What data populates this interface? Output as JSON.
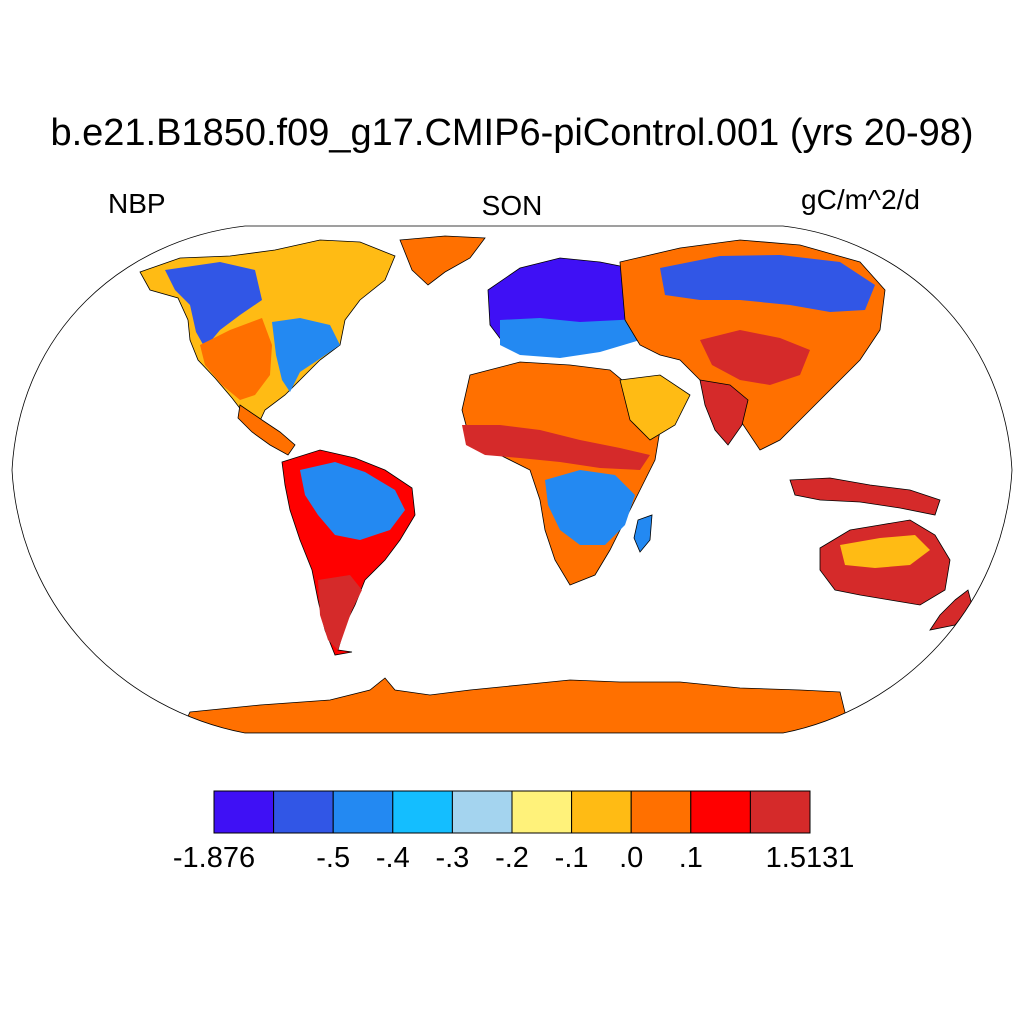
{
  "title": "b.e21.B1850.f09_g17.CMIP6-piControl.001 (yrs 20-98)",
  "left_label": "NBP",
  "center_label": "SON",
  "right_label": "gC/m^2/d",
  "colorbar": {
    "colors": [
      "#3f10f5",
      "#3156e6",
      "#2389f2",
      "#14beff",
      "#a4d4ef",
      "#fff27a",
      "#ffbb14",
      "#ff7000",
      "#ff0000",
      "#d52a2a"
    ],
    "labels": [
      "-1.876",
      "-.5",
      "-.4",
      "-.3",
      "-.2",
      "-.1",
      ".0",
      ".1",
      "1.5131"
    ],
    "boundary_index": [
      0,
      2,
      3,
      4,
      5,
      6,
      7,
      8,
      10
    ]
  },
  "map": {
    "projection": "Robinson",
    "ocean_color": "#ffffff",
    "coastline_color": "#000000"
  }
}
